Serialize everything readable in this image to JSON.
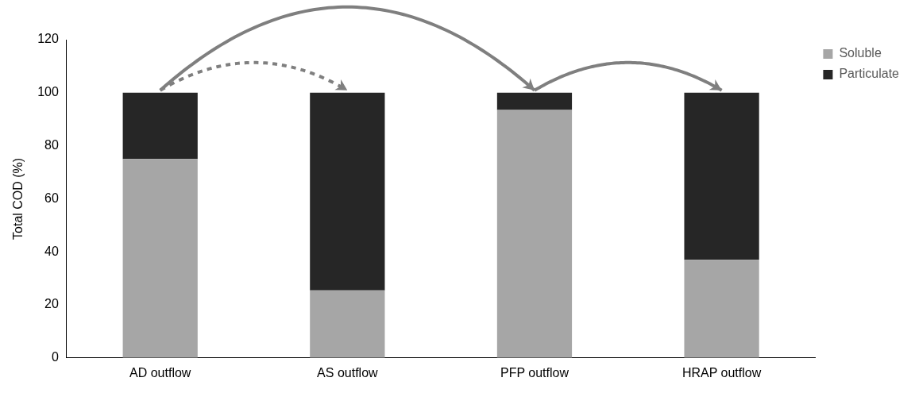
{
  "chart_data": {
    "type": "bar",
    "stacked": true,
    "ylabel": "Total COD (%)",
    "categories": [
      "AD outflow",
      "AS outflow",
      "PFP outflow",
      "HRAP outflow"
    ],
    "series": [
      {
        "name": "Soluble",
        "color": "#a6a6a6",
        "values": [
          75,
          25.5,
          93.5,
          37
        ]
      },
      {
        "name": "Particulate",
        "color": "#262626",
        "values": [
          25,
          74.5,
          6.5,
          63
        ]
      }
    ],
    "ylim": [
      0,
      120
    ],
    "yticks": [
      0,
      20,
      40,
      60,
      80,
      100,
      120
    ],
    "grid": false,
    "legend": "right"
  }
}
